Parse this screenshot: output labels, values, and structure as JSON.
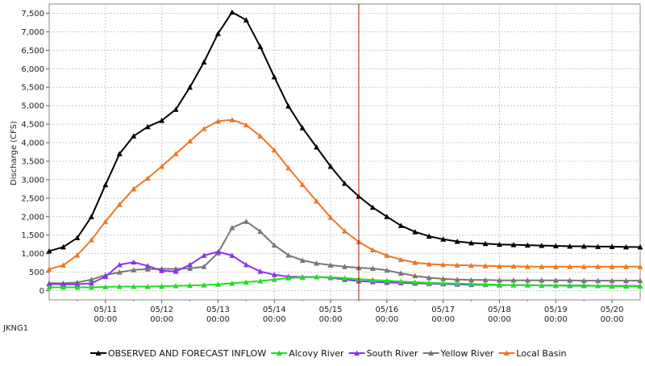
{
  "station": "JKNG1",
  "chart_data": {
    "type": "line",
    "title": "",
    "ylabel": "Discharge (CFS)",
    "xlabel": "",
    "ylim": [
      -250,
      7750
    ],
    "y_ticks": [
      0,
      500,
      1000,
      1500,
      2000,
      2500,
      3000,
      3500,
      4000,
      4500,
      5000,
      5500,
      6000,
      6500,
      7000,
      7500
    ],
    "y_tick_labels": [
      "0",
      "500",
      "1,000",
      "1,500",
      "2,000",
      "2,500",
      "3,000",
      "3,500",
      "4,000",
      "4,500",
      "5,000",
      "5,500",
      "6,000",
      "6,500",
      "7,000",
      "7,500"
    ],
    "x_unit": "days from 05/10 00:00",
    "xlim": [
      0.0,
      10.5
    ],
    "x_ticks": [
      1,
      2,
      3,
      4,
      5,
      6,
      7,
      8,
      9,
      10
    ],
    "x_tick_labels": [
      [
        "05/11",
        "00:00"
      ],
      [
        "05/12",
        "00:00"
      ],
      [
        "05/13",
        "00:00"
      ],
      [
        "05/14",
        "00:00"
      ],
      [
        "05/15",
        "00:00"
      ],
      [
        "05/16",
        "00:00"
      ],
      [
        "05/17",
        "00:00"
      ],
      [
        "05/18",
        "00:00"
      ],
      [
        "05/19",
        "00:00"
      ],
      [
        "05/20",
        "00:00"
      ]
    ],
    "forecast_line_x": 5.5,
    "grid": true,
    "legend_position": "bottom",
    "x": [
      0.0,
      0.25,
      0.5,
      0.75,
      1.0,
      1.25,
      1.5,
      1.75,
      2.0,
      2.25,
      2.5,
      2.75,
      3.0,
      3.25,
      3.5,
      3.75,
      4.0,
      4.25,
      4.5,
      4.75,
      5.0,
      5.25,
      5.5,
      5.75,
      6.0,
      6.25,
      6.5,
      6.75,
      7.0,
      7.25,
      7.5,
      7.75,
      8.0,
      8.25,
      8.5,
      8.75,
      9.0,
      9.25,
      9.5,
      9.75,
      10.0,
      10.25,
      10.5
    ],
    "series": [
      {
        "name": "OBSERVED AND FORECAST INFLOW",
        "color": "#000000",
        "values": [
          1070,
          1180,
          1430,
          2000,
          2860,
          3700,
          4180,
          4430,
          4600,
          4900,
          5500,
          6180,
          6950,
          7530,
          7320,
          6600,
          5780,
          4990,
          4400,
          3880,
          3360,
          2900,
          2550,
          2250,
          2000,
          1760,
          1590,
          1470,
          1390,
          1330,
          1290,
          1270,
          1250,
          1240,
          1230,
          1220,
          1210,
          1200,
          1200,
          1190,
          1190,
          1180,
          1180
        ]
      },
      {
        "name": "Alcovy River",
        "color": "#22dd22",
        "values": [
          90,
          90,
          90,
          90,
          100,
          110,
          110,
          110,
          120,
          130,
          140,
          150,
          170,
          200,
          230,
          260,
          300,
          340,
          360,
          370,
          360,
          340,
          310,
          290,
          270,
          250,
          230,
          210,
          200,
          190,
          180,
          170,
          160,
          150,
          150,
          140,
          140,
          130,
          130,
          130,
          120,
          120,
          120
        ]
      },
      {
        "name": "South River",
        "color": "#8833ee",
        "values": [
          180,
          170,
          170,
          200,
          380,
          700,
          770,
          670,
          540,
          520,
          700,
          950,
          1050,
          950,
          700,
          520,
          430,
          380,
          370,
          370,
          350,
          300,
          260,
          240,
          220,
          210,
          200,
          190,
          180,
          170,
          160,
          160,
          150,
          150,
          150,
          140,
          140,
          140,
          140,
          130,
          130,
          130,
          130
        ]
      },
      {
        "name": "Yellow River",
        "color": "#777777",
        "values": [
          200,
          200,
          220,
          300,
          420,
          500,
          560,
          580,
          590,
          590,
          600,
          650,
          1020,
          1700,
          1870,
          1600,
          1230,
          960,
          820,
          740,
          690,
          650,
          620,
          600,
          550,
          470,
          400,
          350,
          320,
          300,
          290,
          290,
          280,
          280,
          280,
          280,
          280,
          280,
          270,
          270,
          270,
          270,
          270
        ]
      },
      {
        "name": "Local Basin",
        "color": "#ee7722",
        "values": [
          580,
          690,
          960,
          1370,
          1870,
          2330,
          2750,
          3040,
          3360,
          3700,
          4040,
          4380,
          4580,
          4620,
          4480,
          4180,
          3800,
          3320,
          2870,
          2420,
          1980,
          1610,
          1320,
          1100,
          950,
          840,
          760,
          720,
          700,
          690,
          680,
          670,
          660,
          660,
          650,
          650,
          650,
          650,
          650,
          650,
          650,
          650,
          650
        ]
      }
    ]
  }
}
